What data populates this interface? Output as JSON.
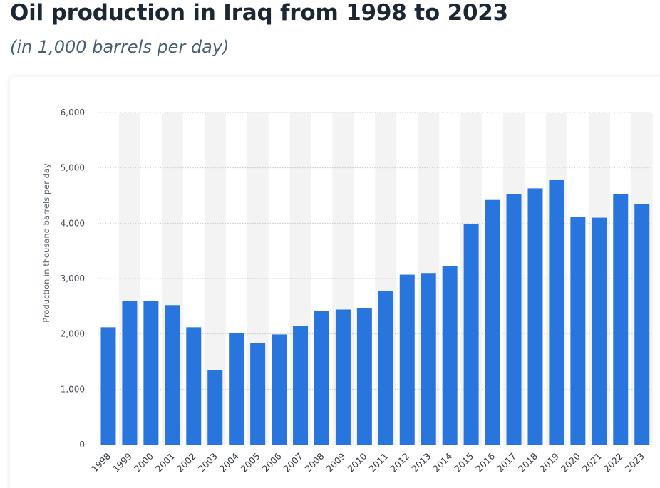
{
  "header": {
    "title": "Oil production in Iraq from 1998 to 2023",
    "subtitle": "(in 1,000 barrels per day)"
  },
  "chart_data": {
    "type": "bar",
    "categories": [
      "1998",
      "1999",
      "2000",
      "2001",
      "2002",
      "2003",
      "2004",
      "2005",
      "2006",
      "2007",
      "2008",
      "2009",
      "2010",
      "2011",
      "2012",
      "2013",
      "2014",
      "2015",
      "2016",
      "2017",
      "2018",
      "2019",
      "2020",
      "2021",
      "2022",
      "2023"
    ],
    "series": [
      {
        "values": [
          2120,
          2600,
          2600,
          2520,
          2120,
          1340,
          2020,
          1830,
          1990,
          2140,
          2420,
          2440,
          2460,
          2770,
          3070,
          3100,
          3230,
          3980,
          4420,
          4530,
          4630,
          4780,
          4110,
          4100,
          4520,
          4350
        ]
      }
    ],
    "ylabel": "Production in thousand barrels per day",
    "xlabel": "",
    "ylim": [
      0,
      6000
    ],
    "yticks": [
      0,
      1000,
      2000,
      3000,
      4000,
      5000,
      6000
    ],
    "ytick_labels": [
      "0",
      "1,000",
      "2,000",
      "3,000",
      "4,000",
      "5,000",
      "6,000"
    ],
    "grid": true,
    "colors": {
      "bar": "#2876dd",
      "alt_band": "#f3f3f3",
      "grid": "#c9c9c9"
    }
  }
}
